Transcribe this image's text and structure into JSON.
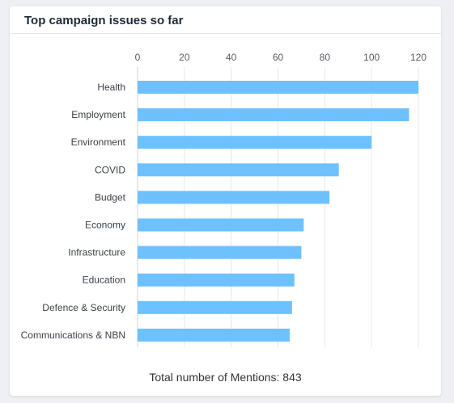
{
  "card": {
    "title": "Top campaign issues so far",
    "footer": "Total number of Mentions: 843"
  },
  "colors": {
    "bar": "#6ec1ff",
    "grid": "#e6e8eb",
    "axis": "#cfd3d8"
  },
  "chart_data": {
    "type": "bar",
    "orientation": "horizontal",
    "title": "",
    "xlabel": "",
    "ylabel": "",
    "x_axis_position": "top",
    "xlim": [
      0,
      120
    ],
    "xticks": [
      0,
      20,
      40,
      60,
      80,
      100,
      120
    ],
    "grid": true,
    "legend": false,
    "categories": [
      "Health",
      "Employment",
      "Environment",
      "COVID",
      "Budget",
      "Economy",
      "Infrastructure",
      "Education",
      "Defence & Security",
      "Communications & NBN"
    ],
    "values": [
      120,
      116,
      100,
      86,
      82,
      71,
      70,
      67,
      66,
      65
    ]
  }
}
